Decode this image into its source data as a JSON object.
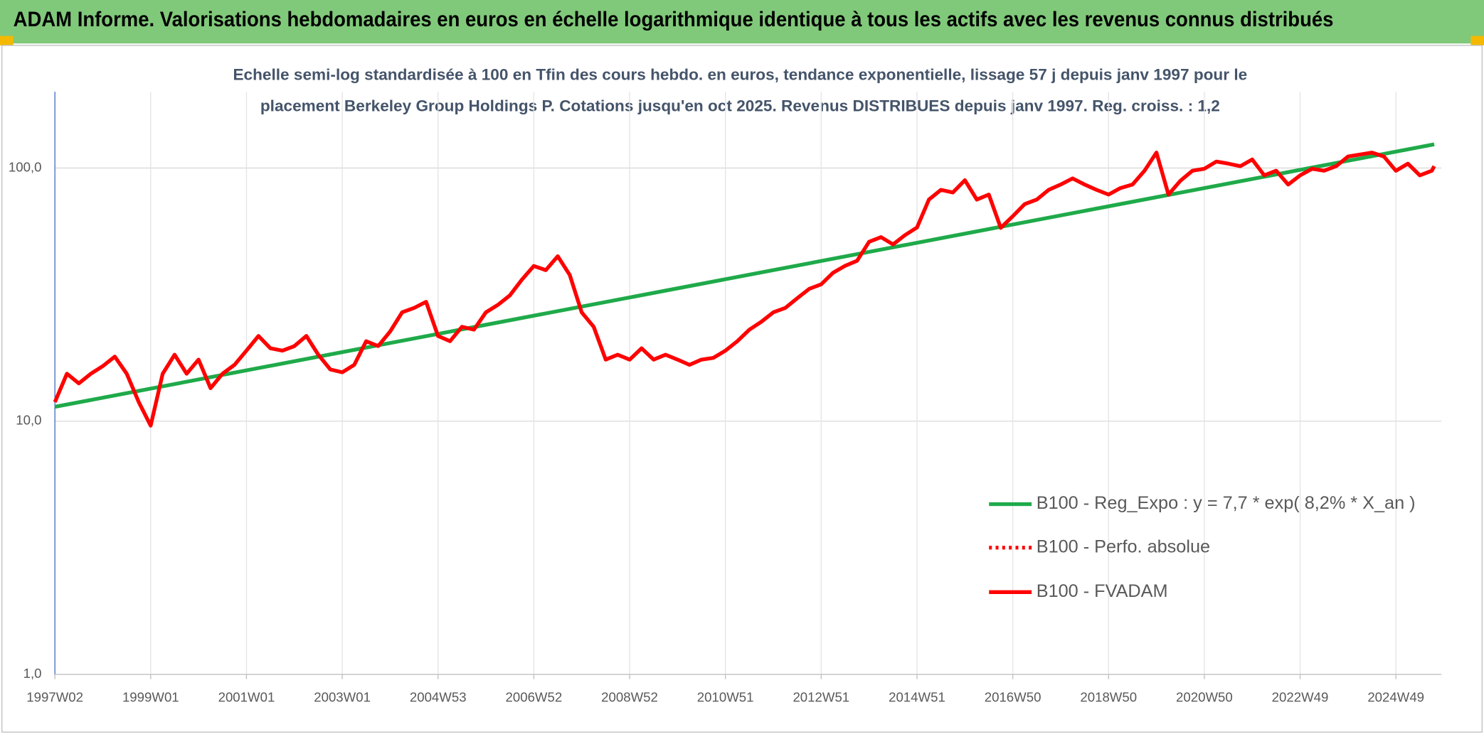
{
  "chart_data": {
    "type": "line",
    "title": "ADAM Informe. Valorisations hebdomadaires en euros en échelle logarithmique identique à tous les actifs avec les revenus connus distribués",
    "subtitle": [
      "Echelle semi-log standardisée à 100 en Tfin des cours hebdo. en euros, tendance exponentielle, lissage 57 j depuis janv 1997 pour le",
      "placement Berkeley Group Holdings P. Cotations jusqu'en oct 2025. Revenus DISTRIBUES depuis janv 1997. Reg. croiss. : 1,2"
    ],
    "log_scale": true,
    "grid": true,
    "legend_position": "right",
    "xlim": [
      1997.0,
      2025.95
    ],
    "xticks": [
      {
        "value": 1997.0,
        "label": "1997W02"
      },
      {
        "value": 1999.0,
        "label": "1999W01"
      },
      {
        "value": 2001.0,
        "label": "2001W01"
      },
      {
        "value": 2003.0,
        "label": "2003W01"
      },
      {
        "value": 2005.0,
        "label": "2004W53"
      },
      {
        "value": 2007.0,
        "label": "2006W52"
      },
      {
        "value": 2009.0,
        "label": "2008W52"
      },
      {
        "value": 2011.0,
        "label": "2010W51"
      },
      {
        "value": 2013.0,
        "label": "2012W51"
      },
      {
        "value": 2015.0,
        "label": "2014W51"
      },
      {
        "value": 2017.0,
        "label": "2016W50"
      },
      {
        "value": 2019.0,
        "label": "2018W50"
      },
      {
        "value": 2021.0,
        "label": "2020W50"
      },
      {
        "value": 2023.0,
        "label": "2022W49"
      },
      {
        "value": 2025.0,
        "label": "2024W49"
      }
    ],
    "ylim": [
      1,
      200
    ],
    "yticks": [
      {
        "value": 1,
        "label": "1,0"
      },
      {
        "value": 10,
        "label": "10,0"
      },
      {
        "value": 100,
        "label": "100,0"
      }
    ],
    "series": [
      {
        "name": "B100 - Reg_Expo : y = 7,7 * exp( 8,2% *  X_an )",
        "color": "#1faa4a",
        "style": "solid",
        "x": [
          1997.0,
          2025.8
        ],
        "values": [
          11.4,
          124
        ]
      },
      {
        "name": "B100 - Perfo. absolue",
        "color": "#ff0000",
        "style": "dotted",
        "x": [],
        "values": []
      },
      {
        "name": "B100 - FVADAM",
        "color": "#ff0000",
        "style": "solid",
        "x": [
          1997.0,
          1997.25,
          1997.5,
          1997.75,
          1998.0,
          1998.25,
          1998.5,
          1998.75,
          1999.0,
          1999.25,
          1999.5,
          1999.75,
          2000.0,
          2000.25,
          2000.5,
          2000.75,
          2001.0,
          2001.25,
          2001.5,
          2001.75,
          2002.0,
          2002.25,
          2002.5,
          2002.75,
          2003.0,
          2003.25,
          2003.5,
          2003.75,
          2004.0,
          2004.25,
          2004.5,
          2004.75,
          2005.0,
          2005.25,
          2005.5,
          2005.75,
          2006.0,
          2006.25,
          2006.5,
          2006.75,
          2007.0,
          2007.25,
          2007.5,
          2007.75,
          2008.0,
          2008.25,
          2008.5,
          2008.75,
          2009.0,
          2009.25,
          2009.5,
          2009.75,
          2010.0,
          2010.25,
          2010.5,
          2010.75,
          2011.0,
          2011.25,
          2011.5,
          2011.75,
          2012.0,
          2012.25,
          2012.5,
          2012.75,
          2013.0,
          2013.25,
          2013.5,
          2013.75,
          2014.0,
          2014.25,
          2014.5,
          2014.75,
          2015.0,
          2015.25,
          2015.5,
          2015.75,
          2016.0,
          2016.25,
          2016.5,
          2016.75,
          2017.0,
          2017.25,
          2017.5,
          2017.75,
          2018.0,
          2018.25,
          2018.5,
          2018.75,
          2019.0,
          2019.25,
          2019.5,
          2019.75,
          2020.0,
          2020.25,
          2020.5,
          2020.75,
          2021.0,
          2021.25,
          2021.5,
          2021.75,
          2022.0,
          2022.25,
          2022.5,
          2022.75,
          2023.0,
          2023.25,
          2023.5,
          2023.75,
          2024.0,
          2024.25,
          2024.5,
          2024.75,
          2025.0,
          2025.25,
          2025.5,
          2025.75,
          2025.8
        ],
        "values": [
          11.9,
          15.4,
          14.1,
          15.4,
          16.5,
          18,
          15.4,
          11.9,
          9.6,
          15.4,
          18.3,
          15.4,
          17.5,
          13.5,
          15.4,
          16.7,
          19,
          21.7,
          19.4,
          19,
          19.8,
          21.7,
          18.3,
          16,
          15.6,
          16.7,
          20.7,
          19.8,
          22.6,
          26.9,
          28,
          29.6,
          21.7,
          20.7,
          23.6,
          23,
          26.9,
          28.8,
          31.4,
          36.2,
          41,
          39.5,
          44.8,
          37.8,
          26.9,
          23.6,
          17.5,
          18.3,
          17.5,
          19.4,
          17.5,
          18.3,
          17.5,
          16.7,
          17.5,
          17.8,
          19,
          20.7,
          23,
          24.7,
          26.9,
          28,
          30.6,
          33.3,
          34.7,
          38.6,
          41.1,
          43,
          51.1,
          53.3,
          49.9,
          54.3,
          58.2,
          75,
          82,
          80,
          89.5,
          75,
          78.5,
          58,
          64.5,
          72,
          75,
          82,
          86,
          91,
          86,
          82,
          78.5,
          83.3,
          86,
          97.5,
          115,
          78.5,
          89,
          97.5,
          99.3,
          106,
          104,
          101.6,
          108,
          93.5,
          97.5,
          86,
          93.5,
          99.3,
          97.5,
          101.6,
          111,
          113,
          115,
          111,
          97.5,
          104,
          93.5,
          97.5,
          101.6
        ]
      }
    ]
  }
}
